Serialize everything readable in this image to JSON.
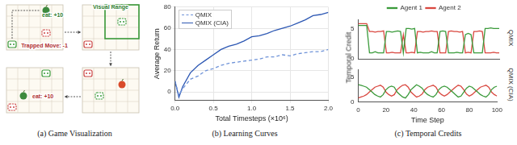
{
  "diagram": {
    "caption": "(a) Game Visualization",
    "annotations": [
      "eat: +10",
      "Trapped Move: -1",
      "Visual Range",
      "eat: +10"
    ]
  },
  "chart_data": [
    {
      "type": "line",
      "caption": "(b) Learning Curves",
      "xlabel": "Total Timesteps (×10⁶)",
      "ylabel": "Average Return",
      "x": [
        0,
        0.05,
        0.1,
        0.2,
        0.3,
        0.4,
        0.5,
        0.6,
        0.7,
        0.8,
        0.9,
        1.0,
        1.1,
        1.2,
        1.3,
        1.4,
        1.5,
        1.6,
        1.7,
        1.8,
        1.9,
        2.0
      ],
      "series": [
        {
          "name": "QMIX",
          "color": "#6f93d8",
          "line_style": "dashed",
          "values": [
            10,
            -3,
            3,
            12,
            15,
            20,
            22,
            25,
            27,
            28,
            29,
            30,
            31,
            33,
            33,
            35,
            34,
            36,
            37,
            38,
            38,
            40
          ]
        },
        {
          "name": "QMIX (CIA)",
          "color": "#2c57b3",
          "line_style": "solid",
          "values": [
            10,
            -5,
            5,
            18,
            25,
            30,
            35,
            40,
            43,
            45,
            48,
            52,
            53,
            55,
            58,
            60,
            62,
            65,
            68,
            72,
            73,
            75
          ]
        }
      ],
      "xlim": [
        0,
        2.0
      ],
      "xticks": [
        {
          "value": 0,
          "label": "0.0"
        },
        0.5,
        {
          "value": 1,
          "label": "1.0"
        },
        1.5,
        {
          "value": 2,
          "label": "2.0"
        }
      ],
      "ylim": [
        -8,
        80
      ],
      "yticks": [
        0,
        20,
        40,
        60,
        80
      ],
      "grid": true,
      "legend": "upper left"
    },
    {
      "type": "line",
      "caption": "(c) Temporal Credits",
      "title": "QMIX",
      "ylabel": "Temporal Credit",
      "x": [
        0,
        2,
        4,
        6,
        8,
        10,
        12,
        14,
        16,
        18,
        20,
        22,
        24,
        26,
        28,
        30,
        32,
        34,
        36,
        38,
        40,
        42,
        44,
        46,
        48,
        50,
        52,
        54,
        56,
        58,
        60,
        62,
        64,
        66,
        68,
        70,
        72,
        74,
        76,
        78,
        80,
        82,
        84,
        86,
        88,
        90,
        92,
        94,
        96,
        98,
        100
      ],
      "series": [
        {
          "name": "Agent 1",
          "color": "#3a9a3a",
          "values": [
            5.5,
            5.5,
            5.5,
            5.5,
            1,
            1,
            1.2,
            1,
            1,
            1,
            4.5,
            4.5,
            4.4,
            4.5,
            4.6,
            4.5,
            1,
            5,
            5,
            4.9,
            5,
            1,
            1.1,
            1,
            1,
            1,
            1.2,
            1,
            1,
            4.5,
            4.6,
            4.5,
            1,
            1,
            1,
            1.1,
            1,
            1,
            4,
            4.2,
            4,
            1,
            1,
            1,
            1,
            5,
            5,
            5.1,
            5,
            5,
            5
          ]
        },
        {
          "name": "Agent 2",
          "color": "#d9473f",
          "values": [
            5.8,
            5.8,
            5.8,
            5.8,
            4.5,
            4.5,
            4.4,
            4.5,
            4.5,
            4.6,
            1,
            1,
            1.1,
            1,
            1,
            1,
            4,
            1,
            1,
            1.1,
            1,
            4.5,
            4.5,
            4.4,
            4.5,
            4.5,
            4.6,
            4.5,
            4.5,
            1,
            1,
            1,
            4.5,
            4.6,
            4.5,
            4.5,
            4.4,
            4.5,
            1,
            1.1,
            1,
            4.5,
            4.5,
            4.6,
            4.5,
            1,
            1,
            1,
            1.1,
            1,
            1
          ]
        }
      ],
      "xlim": [
        0,
        100
      ],
      "xticks": [
        0,
        20,
        40,
        60,
        80,
        100
      ],
      "ylim": [
        0,
        6.5
      ],
      "yticks": [
        0,
        5
      ],
      "grid": false,
      "legend": "upper center",
      "tick_labels": "y"
    },
    {
      "type": "line",
      "title": "QMIX (CIA)",
      "xlabel": "Time Step",
      "x": [
        0,
        2,
        4,
        6,
        8,
        10,
        12,
        14,
        16,
        18,
        20,
        22,
        24,
        26,
        28,
        30,
        32,
        34,
        36,
        38,
        40,
        42,
        44,
        46,
        48,
        50,
        52,
        54,
        56,
        58,
        60,
        62,
        64,
        66,
        68,
        70,
        72,
        74,
        76,
        78,
        80,
        82,
        84,
        86,
        88,
        90,
        92,
        94,
        96,
        98,
        100
      ],
      "series": [
        {
          "name": "Agent 1",
          "color": "#3a9a3a",
          "values": [
            3.5,
            3.4,
            3.2,
            3,
            2.5,
            2,
            1.5,
            1.2,
            1,
            1.5,
            2.5,
            3,
            3.2,
            3,
            2,
            1.5,
            1,
            0.8,
            1.5,
            2.5,
            3,
            3.5,
            3.2,
            2.8,
            2,
            1.5,
            1.2,
            1,
            1.5,
            2.5,
            3,
            3.2,
            3,
            2.5,
            2,
            1.5,
            1,
            1.2,
            2,
            2.8,
            3.2,
            3,
            2.5,
            2,
            1.5,
            1.2,
            1,
            1.5,
            2.5,
            3,
            3.2
          ]
        },
        {
          "name": "Agent 2",
          "color": "#d9473f",
          "values": [
            0.8,
            1,
            1.2,
            1.5,
            2,
            2.5,
            3,
            3.2,
            3.4,
            3,
            2,
            1.5,
            1.2,
            1.5,
            2.5,
            3,
            3.4,
            3.5,
            3,
            2,
            1.5,
            1,
            1.2,
            1.6,
            2.5,
            3,
            3.2,
            3.4,
            3,
            2,
            1.5,
            1.2,
            1.5,
            2,
            2.5,
            3,
            3.4,
            3.2,
            2.5,
            1.6,
            1.2,
            1.5,
            2,
            2.5,
            3,
            3.2,
            3.4,
            3,
            2,
            1.5,
            1.2
          ]
        }
      ],
      "xlim": [
        0,
        100
      ],
      "xticks": [
        0,
        20,
        40,
        60,
        80,
        100
      ],
      "ylim": [
        0,
        6.5
      ],
      "yticks": [
        0,
        5
      ],
      "grid": false
    }
  ]
}
